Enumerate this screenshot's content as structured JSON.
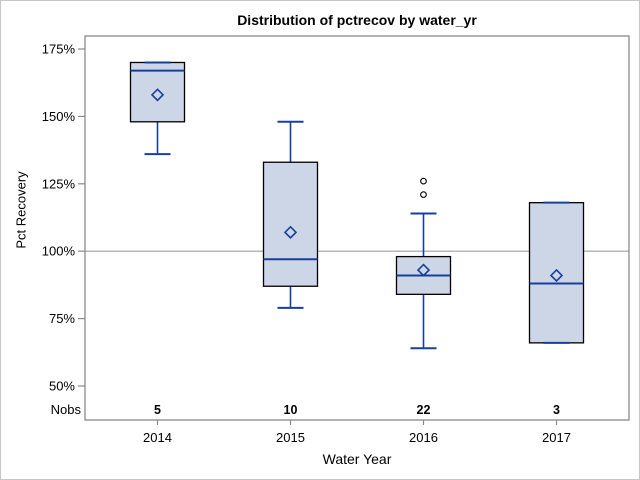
{
  "chart_data": {
    "type": "boxplot",
    "title": "Distribution of pctrecov by water_yr",
    "xlabel": "Water Year",
    "ylabel": "Pct Recovery",
    "nobs_label": "Nobs",
    "categories": [
      "2014",
      "2015",
      "2016",
      "2017"
    ],
    "nobs": [
      5,
      10,
      22,
      3
    ],
    "yticks": [
      175,
      150,
      125,
      100,
      75,
      50
    ],
    "ytick_suffix": "%",
    "reference_line": 100,
    "legend": "none",
    "grid": "off",
    "series": [
      {
        "category": "2014",
        "n": 5,
        "whisker_low": 136,
        "q1": 148,
        "median": 167,
        "q3": 170,
        "whisker_high": 170,
        "mean": 158,
        "outliers": []
      },
      {
        "category": "2015",
        "n": 10,
        "whisker_low": 79,
        "q1": 87,
        "median": 97,
        "q3": 133,
        "whisker_high": 148,
        "mean": 107,
        "outliers": []
      },
      {
        "category": "2016",
        "n": 22,
        "whisker_low": 64,
        "q1": 84,
        "median": 91,
        "q3": 98,
        "whisker_high": 114,
        "mean": 93,
        "outliers": [
          121,
          126
        ]
      },
      {
        "category": "2017",
        "n": 3,
        "whisker_low": 66,
        "q1": 66,
        "median": 88,
        "q3": 118,
        "whisker_high": 118,
        "mean": 91,
        "outliers": []
      }
    ],
    "colors": {
      "box_fill": "#cdd6e6",
      "box_border": "#000000",
      "stat_blue": "#173f9b",
      "frame": "#8a8a8a",
      "reference": "#9aa1a6",
      "text": "#000000",
      "window_border": "#c6c6c6"
    }
  }
}
